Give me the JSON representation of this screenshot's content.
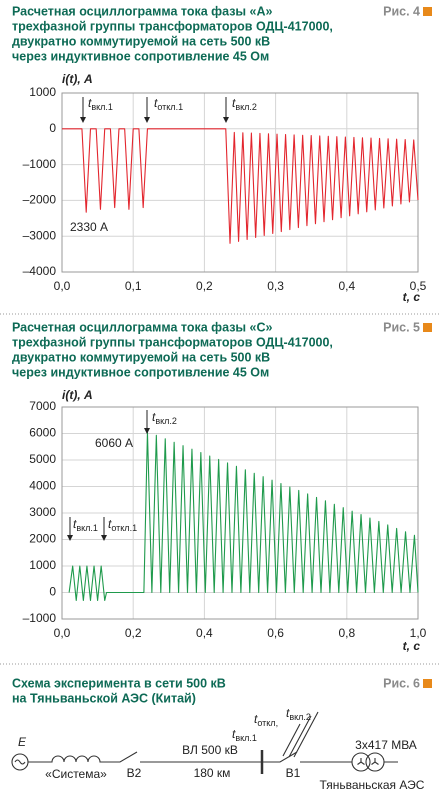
{
  "chart_data": [
    {
      "type": "line",
      "figure_label": "Рис. 4",
      "title": [
        "Расчетная осциллограмма тока фазы «А»",
        "трехфазной группы трансформаторов ОДЦ-417000,",
        "двукратно коммутируемой на сеть 500 кВ",
        "через индуктивное сопротивление 45 Ом"
      ],
      "y_label": "i(t), А",
      "x_label": "t, с",
      "color": "#e3262e",
      "xlim": [
        0,
        0.5
      ],
      "xticks": [
        {
          "value": 0,
          "label": "0,0"
        },
        {
          "value": 0.1,
          "label": "0,1"
        },
        {
          "value": 0.2,
          "label": "0,2"
        },
        {
          "value": 0.3,
          "label": "0,3"
        },
        {
          "value": 0.4,
          "label": "0,4"
        },
        {
          "value": 0.5,
          "label": "0,5"
        }
      ],
      "ylim": [
        -4000,
        1000
      ],
      "yticks": [
        {
          "value": -4000,
          "label": "–4000"
        },
        {
          "value": -3000,
          "label": "–3000"
        },
        {
          "value": -2000,
          "label": "–2000"
        },
        {
          "value": -1000,
          "label": "–1000"
        },
        0,
        1000
      ],
      "grid": true,
      "annotations": [
        {
          "t": "t",
          "sub": "вкл.1"
        },
        {
          "t": "t",
          "sub": "откл.1"
        },
        {
          "t": "t",
          "sub": "вкл.2"
        }
      ],
      "peak_label": "2330 А",
      "x": [
        0,
        0.028,
        0.034,
        0.04,
        0.048,
        0.054,
        0.06,
        0.068,
        0.074,
        0.08,
        0.088,
        0.094,
        0.1,
        0.108,
        0.114,
        0.12,
        0.23,
        0.236,
        0.242,
        0.248,
        0.254,
        0.26,
        0.266,
        0.272,
        0.278,
        0.284,
        0.29,
        0.296,
        0.302,
        0.308,
        0.314,
        0.32,
        0.326,
        0.332,
        0.338,
        0.344,
        0.35,
        0.356,
        0.362,
        0.368,
        0.374,
        0.38,
        0.386,
        0.392,
        0.398,
        0.404,
        0.41,
        0.416,
        0.422,
        0.428,
        0.434,
        0.44,
        0.446,
        0.452,
        0.458,
        0.464,
        0.47,
        0.476,
        0.482,
        0.488,
        0.494,
        0.5
      ],
      "values": [
        0,
        0,
        -2330,
        0,
        0,
        -2250,
        0,
        0,
        -2200,
        0,
        0,
        -2250,
        0,
        0,
        -2200,
        0,
        0,
        -3200,
        -100,
        -3145,
        -110,
        -3090,
        -120,
        -3035,
        -130,
        -2980,
        -140,
        -2925,
        -150,
        -2870,
        -160,
        -2815,
        -170,
        -2760,
        -180,
        -2705,
        -190,
        -2650,
        -200,
        -2595,
        -210,
        -2540,
        -220,
        -2485,
        -230,
        -2430,
        -240,
        -2375,
        -250,
        -2320,
        -260,
        -2265,
        -270,
        -2210,
        -280,
        -2155,
        -290,
        -2100,
        -300,
        -2045,
        -310,
        -1990
      ]
    },
    {
      "type": "line",
      "figure_label": "Рис. 5",
      "title": [
        "Расчетная осциллограмма тока фазы «С»",
        "трехфазной группы трансформаторов ОДЦ-417000,",
        "двукратно коммутируемой на сеть 500 кВ",
        "через индуктивное сопротивление 45 Ом"
      ],
      "y_label": "i(t), А",
      "x_label": "t, с",
      "color": "#1f9a4c",
      "xlim": [
        0,
        1
      ],
      "xticks": [
        {
          "value": 0,
          "label": "0,0"
        },
        {
          "value": 0.2,
          "label": "0,2"
        },
        {
          "value": 0.4,
          "label": "0,4"
        },
        {
          "value": 0.6,
          "label": "0,6"
        },
        {
          "value": 0.8,
          "label": "0,8"
        },
        {
          "value": 1,
          "label": "1,0"
        }
      ],
      "ylim": [
        -1000,
        7000
      ],
      "yticks": [
        {
          "value": -1000,
          "label": "–1000"
        },
        0,
        1000,
        2000,
        3000,
        4000,
        5000,
        6000,
        7000
      ],
      "grid": true,
      "annotations": [
        {
          "t": "t",
          "sub": "вкл.1"
        },
        {
          "t": "t",
          "sub": "откл.1"
        },
        {
          "t": "t",
          "sub": "вкл.2"
        }
      ],
      "peak_label": "6060 А",
      "x": [
        0.02,
        0.03,
        0.04,
        0.05,
        0.06,
        0.07,
        0.08,
        0.09,
        0.1,
        0.11,
        0.12,
        0.125,
        0.23,
        0.24,
        0.2525,
        0.265,
        0.2775,
        0.29,
        0.3025,
        0.315,
        0.3275,
        0.34,
        0.3525,
        0.365,
        0.3775,
        0.39,
        0.4025,
        0.415,
        0.4275,
        0.44,
        0.4525,
        0.465,
        0.4775,
        0.49,
        0.5025,
        0.515,
        0.5275,
        0.54,
        0.5525,
        0.565,
        0.5775,
        0.59,
        0.6025,
        0.615,
        0.6275,
        0.64,
        0.6525,
        0.665,
        0.6775,
        0.69,
        0.7025,
        0.715,
        0.7275,
        0.74,
        0.7525,
        0.765,
        0.7775,
        0.79,
        0.8025,
        0.815,
        0.8275,
        0.84,
        0.8525,
        0.865,
        0.8775,
        0.89,
        0.9025,
        0.915,
        0.9275,
        0.94,
        0.9525,
        0.965,
        0.9775,
        0.99,
        1
      ],
      "values": [
        0,
        1000,
        -300,
        1000,
        -300,
        1000,
        -300,
        1000,
        -300,
        1000,
        -300,
        0,
        0,
        6060,
        0,
        5930,
        0,
        5800,
        0,
        5670,
        0,
        5540,
        0,
        5410,
        0,
        5280,
        0,
        5150,
        0,
        5020,
        0,
        4890,
        0,
        4760,
        0,
        4630,
        0,
        4500,
        0,
        4370,
        0,
        4240,
        0,
        4110,
        0,
        3980,
        0,
        3850,
        0,
        3720,
        0,
        3590,
        0,
        3460,
        0,
        3330,
        0,
        3200,
        0,
        3070,
        0,
        2940,
        0,
        2810,
        0,
        2680,
        0,
        2550,
        0,
        2420,
        0,
        2290,
        0,
        2160,
        0
      ]
    }
  ],
  "figure6": {
    "label": "Рис. 6",
    "title": [
      "Схема эксперимента в сети 500 кВ",
      "на Тяньваньской АЭС (Китай)"
    ],
    "source": "E",
    "system": "«Система»",
    "breaker2": "В2",
    "line": "ВЛ 500 кВ",
    "length": "180 км",
    "breaker1": "В1",
    "transformer": "3х417 МВА",
    "plant": "Тяньваньская АЭС",
    "t_on1": {
      "t": "t",
      "sub": "вкл.1"
    },
    "t_off": {
      "t": "t",
      "sub": "откл,"
    },
    "t_on2": {
      "t": "t",
      "sub": "вкл.2"
    }
  }
}
